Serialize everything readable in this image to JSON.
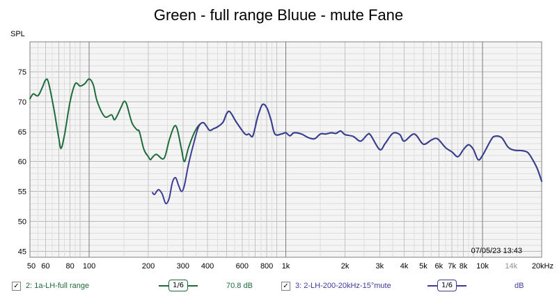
{
  "chart_data": {
    "type": "line",
    "title": "Green - full range Bluue - mute Fane",
    "ylabel": "SPL",
    "xlabel": "",
    "xscale": "log",
    "xlim": [
      50,
      20000
    ],
    "ylim": [
      44,
      80
    ],
    "grid": true,
    "yticks": [
      "45",
      "50",
      "55",
      "60",
      "65",
      "70",
      "75"
    ],
    "xticks": [
      {
        "label": "50",
        "value": 50
      },
      {
        "label": "60",
        "value": 60
      },
      {
        "label": "80",
        "value": 80
      },
      {
        "label": "100",
        "value": 100
      },
      {
        "label": "200",
        "value": 200
      },
      {
        "label": "300",
        "value": 300
      },
      {
        "label": "400",
        "value": 400
      },
      {
        "label": "600",
        "value": 600
      },
      {
        "label": "800",
        "value": 800
      },
      {
        "label": "1k",
        "value": 1000
      },
      {
        "label": "2k",
        "value": 2000
      },
      {
        "label": "3k",
        "value": 3000
      },
      {
        "label": "4k",
        "value": 4000
      },
      {
        "label": "5k",
        "value": 5000
      },
      {
        "label": "6k",
        "value": 6000
      },
      {
        "label": "7k",
        "value": 7000
      },
      {
        "label": "8k",
        "value": 8000
      },
      {
        "label": "10k",
        "value": 10000
      },
      {
        "label": "14k",
        "value": 14000,
        "muted": true
      },
      {
        "label": "20kHz",
        "value": 20000
      }
    ],
    "timestamp": "07/05/23 13:43",
    "series": [
      {
        "name": "1a-LH-full range",
        "color": "#1e6b3a",
        "points": [
          [
            50,
            70.5
          ],
          [
            52,
            71.3
          ],
          [
            55,
            71.0
          ],
          [
            58,
            72.5
          ],
          [
            60,
            73.6
          ],
          [
            62,
            73.3
          ],
          [
            66,
            69.0
          ],
          [
            70,
            64.0
          ],
          [
            72,
            62.2
          ],
          [
            75,
            64.5
          ],
          [
            80,
            70.0
          ],
          [
            85,
            73.0
          ],
          [
            90,
            72.6
          ],
          [
            95,
            73.0
          ],
          [
            100,
            73.8
          ],
          [
            105,
            72.8
          ],
          [
            110,
            70.0
          ],
          [
            120,
            67.5
          ],
          [
            130,
            67.8
          ],
          [
            135,
            67.0
          ],
          [
            145,
            69.0
          ],
          [
            150,
            70.0
          ],
          [
            155,
            69.6
          ],
          [
            165,
            66.5
          ],
          [
            175,
            65.3
          ],
          [
            180,
            65.0
          ],
          [
            190,
            62.0
          ],
          [
            200,
            60.8
          ],
          [
            205,
            60.3
          ],
          [
            210,
            60.7
          ],
          [
            220,
            61.2
          ],
          [
            240,
            60.5
          ],
          [
            255,
            63.5
          ],
          [
            270,
            65.8
          ],
          [
            280,
            65.5
          ],
          [
            295,
            62.0
          ],
          [
            305,
            60.0
          ],
          [
            320,
            62.3
          ],
          [
            340,
            64.6
          ],
          [
            360,
            66.0
          ],
          [
            380,
            66.5
          ],
          [
            395,
            65.9
          ],
          [
            410,
            65.2
          ],
          [
            430,
            65.5
          ],
          [
            450,
            65.8
          ],
          [
            480,
            66.6
          ],
          [
            500,
            68.0
          ],
          [
            520,
            68.3
          ],
          [
            560,
            66.6
          ],
          [
            620,
            64.6
          ],
          [
            650,
            64.6
          ],
          [
            680,
            64.3
          ],
          [
            720,
            67.5
          ],
          [
            760,
            69.5
          ],
          [
            800,
            69.0
          ],
          [
            840,
            67.0
          ],
          [
            880,
            64.6
          ],
          [
            950,
            64.6
          ],
          [
            1000,
            64.8
          ],
          [
            1050,
            64.3
          ],
          [
            1100,
            64.8
          ],
          [
            1200,
            64.6
          ],
          [
            1300,
            64.0
          ],
          [
            1400,
            63.8
          ],
          [
            1500,
            64.6
          ],
          [
            1600,
            64.6
          ],
          [
            1700,
            64.8
          ],
          [
            1800,
            64.7
          ],
          [
            1900,
            65.1
          ],
          [
            2000,
            64.5
          ],
          [
            2200,
            64.2
          ],
          [
            2400,
            63.4
          ],
          [
            2600,
            64.5
          ],
          [
            2700,
            64.4
          ],
          [
            3000,
            62.0
          ],
          [
            3200,
            63.0
          ],
          [
            3500,
            64.7
          ],
          [
            3800,
            64.5
          ],
          [
            4000,
            63.4
          ],
          [
            4500,
            64.6
          ],
          [
            5000,
            62.9
          ],
          [
            5500,
            63.6
          ],
          [
            5900,
            63.8
          ],
          [
            6500,
            62.3
          ],
          [
            7000,
            61.6
          ],
          [
            7500,
            60.8
          ],
          [
            8000,
            62.0
          ],
          [
            8500,
            62.8
          ],
          [
            9000,
            62.0
          ],
          [
            9500,
            60.3
          ],
          [
            10000,
            61.0
          ],
          [
            11000,
            63.5
          ],
          [
            11500,
            64.2
          ],
          [
            12500,
            64.0
          ],
          [
            13500,
            62.4
          ],
          [
            14500,
            61.9
          ],
          [
            16000,
            61.8
          ],
          [
            17000,
            61.5
          ],
          [
            18000,
            60.3
          ],
          [
            19000,
            58.8
          ],
          [
            20000,
            56.7
          ]
        ]
      },
      {
        "name": "2-LH-200-20kHz-15°mute",
        "color": "#3c3c96",
        "points": [
          [
            210,
            54.8
          ],
          [
            215,
            54.5
          ],
          [
            225,
            55.3
          ],
          [
            235,
            54.6
          ],
          [
            245,
            53.0
          ],
          [
            255,
            53.8
          ],
          [
            265,
            56.5
          ],
          [
            275,
            57.3
          ],
          [
            285,
            56.0
          ],
          [
            295,
            55.0
          ],
          [
            305,
            56.0
          ],
          [
            320,
            59.5
          ],
          [
            340,
            63.0
          ],
          [
            360,
            65.8
          ],
          [
            380,
            66.5
          ],
          [
            395,
            65.9
          ],
          [
            410,
            65.2
          ],
          [
            430,
            65.5
          ],
          [
            450,
            65.8
          ],
          [
            480,
            66.6
          ],
          [
            500,
            68.0
          ],
          [
            520,
            68.3
          ],
          [
            560,
            66.6
          ],
          [
            620,
            64.6
          ],
          [
            650,
            64.6
          ],
          [
            680,
            64.3
          ],
          [
            720,
            67.5
          ],
          [
            760,
            69.5
          ],
          [
            800,
            69.0
          ],
          [
            840,
            67.0
          ],
          [
            880,
            64.6
          ],
          [
            950,
            64.6
          ],
          [
            1000,
            64.8
          ],
          [
            1050,
            64.3
          ],
          [
            1100,
            64.8
          ],
          [
            1200,
            64.6
          ],
          [
            1300,
            64.0
          ],
          [
            1400,
            63.8
          ],
          [
            1500,
            64.6
          ],
          [
            1600,
            64.6
          ],
          [
            1700,
            64.8
          ],
          [
            1800,
            64.7
          ],
          [
            1900,
            65.1
          ],
          [
            2000,
            64.5
          ],
          [
            2200,
            64.2
          ],
          [
            2400,
            63.4
          ],
          [
            2600,
            64.5
          ],
          [
            2700,
            64.4
          ],
          [
            3000,
            62.0
          ],
          [
            3200,
            63.0
          ],
          [
            3500,
            64.7
          ],
          [
            3800,
            64.5
          ],
          [
            4000,
            63.4
          ],
          [
            4500,
            64.6
          ],
          [
            5000,
            62.9
          ],
          [
            5500,
            63.6
          ],
          [
            5900,
            63.8
          ],
          [
            6500,
            62.3
          ],
          [
            7000,
            61.6
          ],
          [
            7500,
            60.8
          ],
          [
            8000,
            62.0
          ],
          [
            8500,
            62.8
          ],
          [
            9000,
            62.0
          ],
          [
            9500,
            60.3
          ],
          [
            10000,
            61.0
          ],
          [
            11000,
            63.5
          ],
          [
            11500,
            64.2
          ],
          [
            12500,
            64.0
          ],
          [
            13500,
            62.4
          ],
          [
            14500,
            61.9
          ],
          [
            16000,
            61.8
          ],
          [
            17000,
            61.5
          ],
          [
            18000,
            60.3
          ],
          [
            19000,
            58.8
          ],
          [
            20000,
            56.7
          ]
        ]
      }
    ]
  },
  "legend": [
    {
      "check": "✓",
      "label": "2: 1a-LH-full range",
      "smoothing": "1/6",
      "value": "70.8 dB",
      "color": "#1e6b3a"
    },
    {
      "check": "✓",
      "label": "3: 2-LH-200-20kHz-15°mute",
      "smoothing": "1/6",
      "value": "dB",
      "color": "#3c3c96"
    }
  ]
}
